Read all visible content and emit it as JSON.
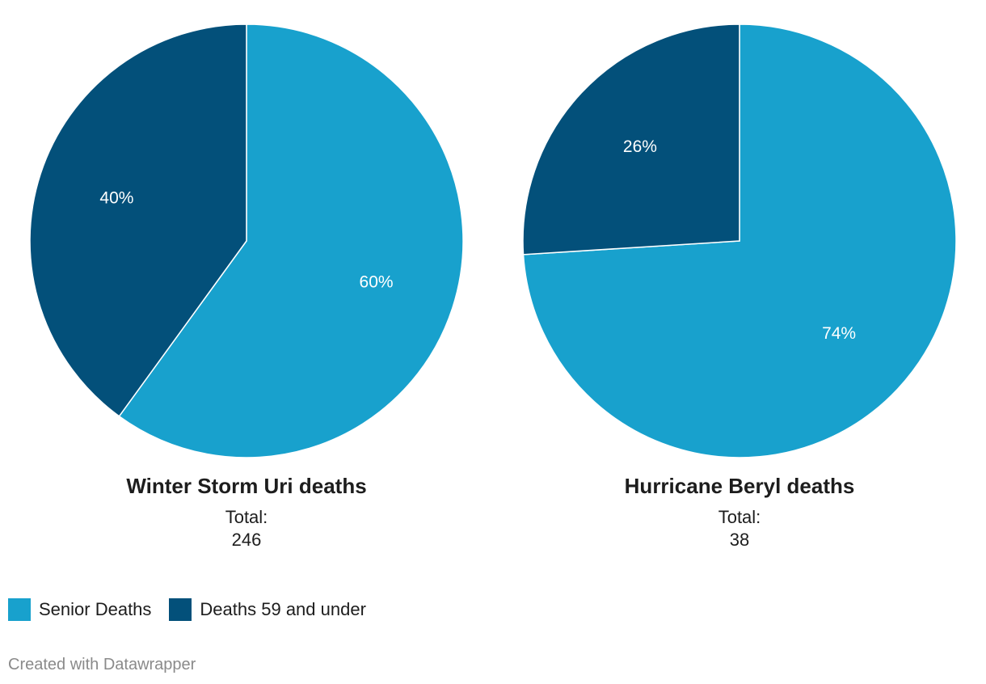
{
  "colors": {
    "senior": "#18a1cd",
    "under59": "#03507a"
  },
  "legend": [
    {
      "label": "Senior Deaths",
      "color": "#18a1cd"
    },
    {
      "label": "Deaths 59 and under",
      "color": "#03507a"
    }
  ],
  "credit": "Created with Datawrapper",
  "chart_data": [
    {
      "type": "pie",
      "title": "Winter Storm Uri deaths",
      "total_label": "Total:",
      "total_value": "246",
      "slices": [
        {
          "name": "Senior Deaths",
          "value": 60,
          "label": "60%",
          "color": "#18a1cd"
        },
        {
          "name": "Deaths 59 and under",
          "value": 40,
          "label": "40%",
          "color": "#03507a"
        }
      ]
    },
    {
      "type": "pie",
      "title": "Hurricane Beryl deaths",
      "total_label": "Total:",
      "total_value": "38",
      "slices": [
        {
          "name": "Senior Deaths",
          "value": 74,
          "label": "74%",
          "color": "#18a1cd"
        },
        {
          "name": "Deaths 59 and under",
          "value": 26,
          "label": "26%",
          "color": "#03507a"
        }
      ]
    }
  ]
}
